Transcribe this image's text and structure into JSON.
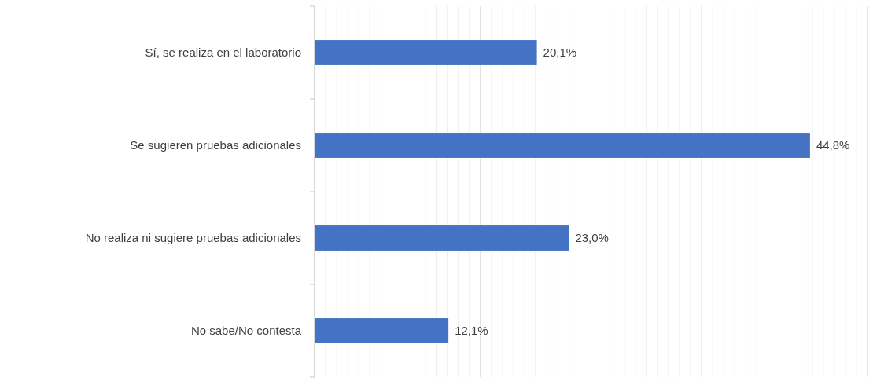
{
  "chart_data": {
    "type": "bar",
    "orientation": "horizontal",
    "categories": [
      "Sí, se realiza en el laboratorio",
      "Se sugieren pruebas adicionales",
      "No realiza ni sugiere pruebas adicionales",
      "No sabe/No contesta"
    ],
    "values": [
      20.1,
      44.8,
      23.0,
      12.1
    ],
    "value_labels": [
      "20,1%",
      "44,8%",
      "23,0%",
      "12,1%"
    ],
    "color": "#4472c4",
    "xlim": [
      0,
      50
    ],
    "xticks": [
      {
        "value": 0,
        "label": null
      },
      {
        "value": 1,
        "label": null
      },
      {
        "value": 2,
        "label": null
      },
      {
        "value": 3,
        "label": null
      },
      {
        "value": 4,
        "label": null
      },
      {
        "value": 5,
        "label": null
      },
      {
        "value": 6,
        "label": null
      },
      {
        "value": 7,
        "label": null
      },
      {
        "value": 8,
        "label": null
      },
      {
        "value": 9,
        "label": null
      },
      {
        "value": 10,
        "label": null
      },
      {
        "value": 11,
        "label": null
      },
      {
        "value": 12,
        "label": null
      },
      {
        "value": 13,
        "label": null
      },
      {
        "value": 14,
        "label": null
      },
      {
        "value": 15,
        "label": null
      },
      {
        "value": 16,
        "label": null
      },
      {
        "value": 17,
        "label": null
      },
      {
        "value": 18,
        "label": null
      },
      {
        "value": 19,
        "label": null
      },
      {
        "value": 20,
        "label": null
      },
      {
        "value": 21,
        "label": null
      },
      {
        "value": 22,
        "label": null
      },
      {
        "value": 23,
        "label": null
      },
      {
        "value": 24,
        "label": null
      },
      {
        "value": 25,
        "label": null
      },
      {
        "value": 26,
        "label": null
      },
      {
        "value": 27,
        "label": null
      },
      {
        "value": 28,
        "label": null
      },
      {
        "value": 29,
        "label": null
      },
      {
        "value": 30,
        "label": null
      },
      {
        "value": 31,
        "label": null
      },
      {
        "value": 32,
        "label": null
      },
      {
        "value": 33,
        "label": null
      },
      {
        "value": 34,
        "label": null
      },
      {
        "value": 35,
        "label": null
      },
      {
        "value": 36,
        "label": null
      },
      {
        "value": 37,
        "label": null
      },
      {
        "value": 38,
        "label": null
      },
      {
        "value": 39,
        "label": null
      },
      {
        "value": 40,
        "label": null
      },
      {
        "value": 41,
        "label": null
      },
      {
        "value": 42,
        "label": null
      },
      {
        "value": 43,
        "label": null
      },
      {
        "value": 44,
        "label": null
      },
      {
        "value": 45,
        "label": null
      },
      {
        "value": 46,
        "label": null
      },
      {
        "value": 47,
        "label": null
      },
      {
        "value": 48,
        "label": null
      },
      {
        "value": 49,
        "label": null
      },
      {
        "value": 50,
        "label": null
      }
    ],
    "grid": "x",
    "tick_labels": "y"
  }
}
